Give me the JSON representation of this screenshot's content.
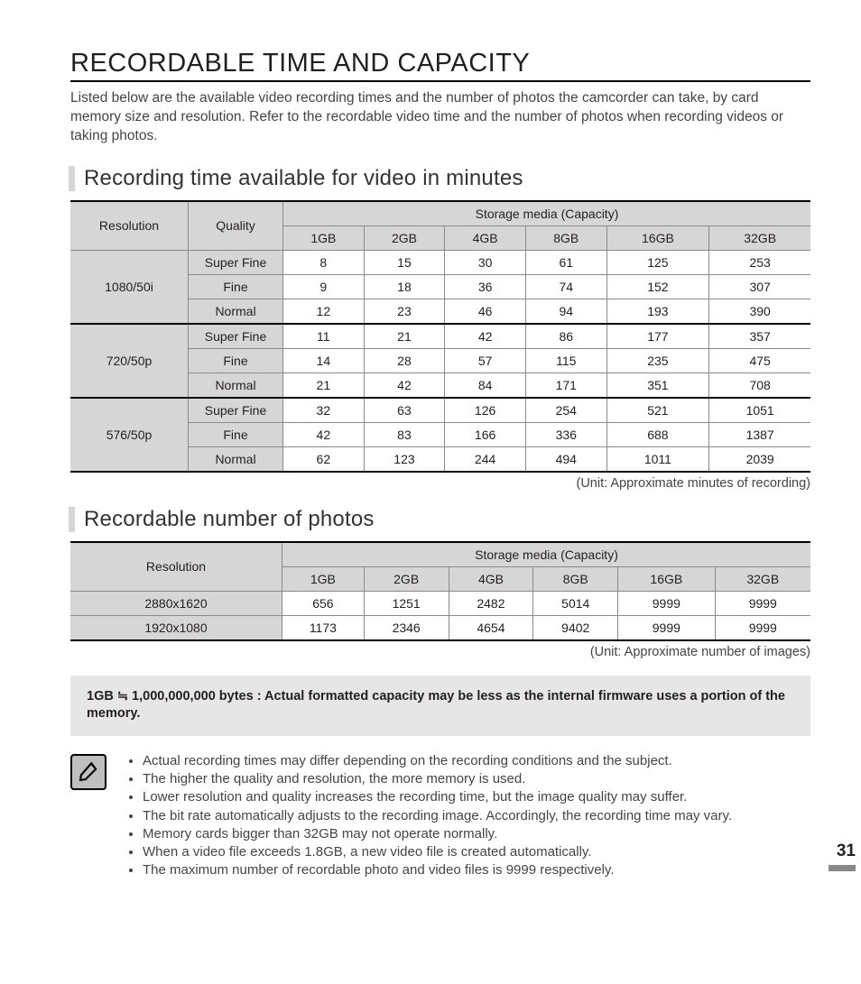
{
  "title": "RECORDABLE TIME AND CAPACITY",
  "intro": "Listed below are the available video recording times and the number of photos the camcorder can take, by card memory size and resolution. Refer to the recordable video time and the number of photos when recording videos or taking photos.",
  "section1": {
    "heading": "Recording time available for video in minutes",
    "resolution_header": "Resolution",
    "quality_header": "Quality",
    "storage_header": "Storage media (Capacity)",
    "capacities": [
      "1GB",
      "2GB",
      "4GB",
      "8GB",
      "16GB",
      "32GB"
    ],
    "groups": [
      {
        "resolution": "1080/50i",
        "rows": [
          {
            "quality": "Super Fine",
            "values": [
              "8",
              "15",
              "30",
              "61",
              "125",
              "253"
            ]
          },
          {
            "quality": "Fine",
            "values": [
              "9",
              "18",
              "36",
              "74",
              "152",
              "307"
            ]
          },
          {
            "quality": "Normal",
            "values": [
              "12",
              "23",
              "46",
              "94",
              "193",
              "390"
            ]
          }
        ]
      },
      {
        "resolution": "720/50p",
        "rows": [
          {
            "quality": "Super Fine",
            "values": [
              "11",
              "21",
              "42",
              "86",
              "177",
              "357"
            ]
          },
          {
            "quality": "Fine",
            "values": [
              "14",
              "28",
              "57",
              "115",
              "235",
              "475"
            ]
          },
          {
            "quality": "Normal",
            "values": [
              "21",
              "42",
              "84",
              "171",
              "351",
              "708"
            ]
          }
        ]
      },
      {
        "resolution": "576/50p",
        "rows": [
          {
            "quality": "Super Fine",
            "values": [
              "32",
              "63",
              "126",
              "254",
              "521",
              "1051"
            ]
          },
          {
            "quality": "Fine",
            "values": [
              "42",
              "83",
              "166",
              "336",
              "688",
              "1387"
            ]
          },
          {
            "quality": "Normal",
            "values": [
              "62",
              "123",
              "244",
              "494",
              "1011",
              "2039"
            ]
          }
        ]
      }
    ],
    "unit_note": "(Unit: Approximate minutes of recording)"
  },
  "section2": {
    "heading": "Recordable number of photos",
    "resolution_header": "Resolution",
    "storage_header": "Storage media (Capacity)",
    "capacities": [
      "1GB",
      "2GB",
      "4GB",
      "8GB",
      "16GB",
      "32GB"
    ],
    "rows": [
      {
        "resolution": "2880x1620",
        "values": [
          "656",
          "1251",
          "2482",
          "5014",
          "9999",
          "9999"
        ]
      },
      {
        "resolution": "1920x1080",
        "values": [
          "1173",
          "2346",
          "4654",
          "9402",
          "9999",
          "9999"
        ]
      }
    ],
    "unit_note": "(Unit: Approximate number of images)"
  },
  "note_box": "1GB ≒ 1,000,000,000 bytes : Actual formatted capacity may be less as the internal firmware uses a portion of the memory.",
  "tips": [
    "Actual recording times may differ depending on the recording conditions and the subject.",
    "The higher the quality and resolution, the more memory is used.",
    "Lower resolution and quality increases the recording time, but the image quality may suffer.",
    "The bit rate automatically adjusts to the recording image. Accordingly, the recording time may vary.",
    "Memory cards bigger than 32GB may not operate normally.",
    "When a video file exceeds 1.8GB, a new video file is created automatically.",
    "The maximum number of recordable photo and video files is 9999 respectively."
  ],
  "page_number": "31",
  "colors": {
    "header_bg": "#d6d6d6",
    "note_bg": "#e7e6e6",
    "border": "#8a8a8a",
    "text": "#231f20"
  }
}
